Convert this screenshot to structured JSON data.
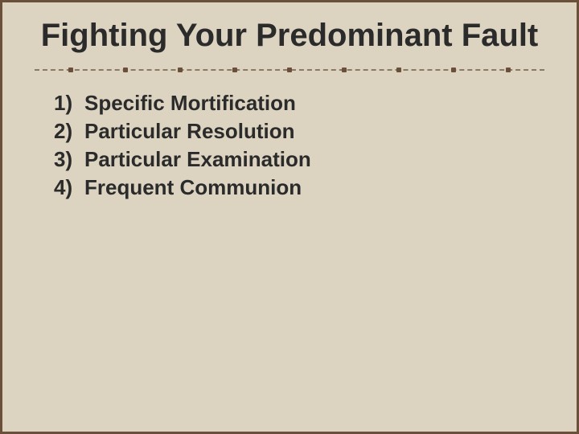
{
  "slide": {
    "title": "Fighting Your Predominant Fault",
    "title_fontsize": 40,
    "background_color": "#dcd4c0",
    "border_color": "#6a503a",
    "text_color": "#2b2b2b",
    "divider": {
      "line_color": "#8a7a64",
      "dot_color": "#6a503a",
      "dot_count": 9
    },
    "list_fontsize": 26,
    "items": [
      {
        "number": "1)",
        "text": "Specific Mortification"
      },
      {
        "number": "2)",
        "text": "Particular Resolution"
      },
      {
        "number": "3)",
        "text": "Particular Examination"
      },
      {
        "number": "4)",
        "text": "Frequent Communion"
      }
    ]
  }
}
